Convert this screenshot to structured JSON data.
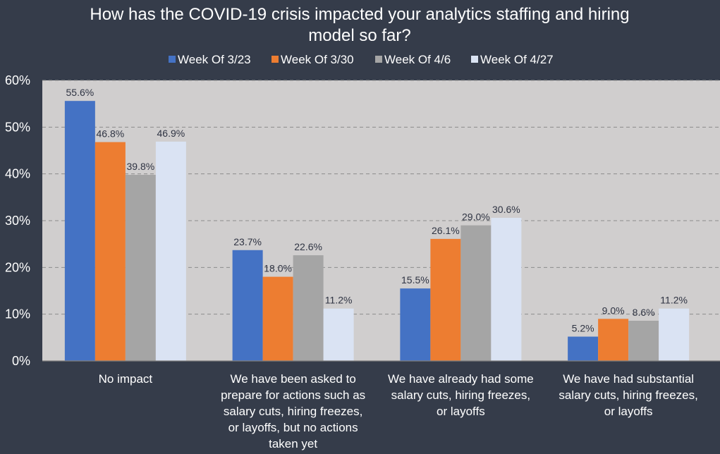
{
  "chart_data": {
    "type": "bar",
    "title_lines": [
      "How has the COVID-19 crisis impacted your analytics staffing and hiring",
      "model so far?"
    ],
    "categories": [
      [
        "No impact"
      ],
      [
        "We have been asked to",
        "prepare for actions such as",
        "salary cuts, hiring freezes,",
        "or layoffs, but no actions",
        "taken yet"
      ],
      [
        "We have already had some",
        "salary cuts, hiring freezes,",
        "or layoffs"
      ],
      [
        "We have had substantial",
        "salary cuts, hiring freezes,",
        "or layoffs"
      ]
    ],
    "series": [
      {
        "name": "Week Of 3/23",
        "color": "#4472c4",
        "values": [
          55.6,
          23.7,
          15.5,
          5.2
        ],
        "labels": [
          "55.6%",
          "23.7%",
          "15.5%",
          "5.2%"
        ]
      },
      {
        "name": "Week Of 3/30",
        "color": "#ed7d31",
        "values": [
          46.8,
          18.0,
          26.1,
          9.0
        ],
        "labels": [
          "46.8%",
          "18.0%",
          "26.1%",
          "9.0%"
        ]
      },
      {
        "name": "Week Of 4/6",
        "color": "#a5a5a5",
        "values": [
          39.8,
          22.6,
          29.0,
          8.6
        ],
        "labels": [
          "39.8%",
          "22.6%",
          "29.0%",
          "8.6%"
        ]
      },
      {
        "name": "Week Of 4/27",
        "color": "#dae3f3",
        "values": [
          46.9,
          11.2,
          30.6,
          11.2
        ],
        "labels": [
          "46.9%",
          "11.2%",
          "30.6%",
          "11.2%"
        ]
      }
    ],
    "ylim": [
      0,
      60
    ],
    "yticks": [
      0,
      10,
      20,
      30,
      40,
      50,
      60
    ],
    "ytick_labels": [
      "0%",
      "10%",
      "20%",
      "30%",
      "40%",
      "50%",
      "60%"
    ],
    "grid": true,
    "legend_position": "top",
    "plot_background": "#d0cece",
    "page_background": "#353c4a"
  }
}
